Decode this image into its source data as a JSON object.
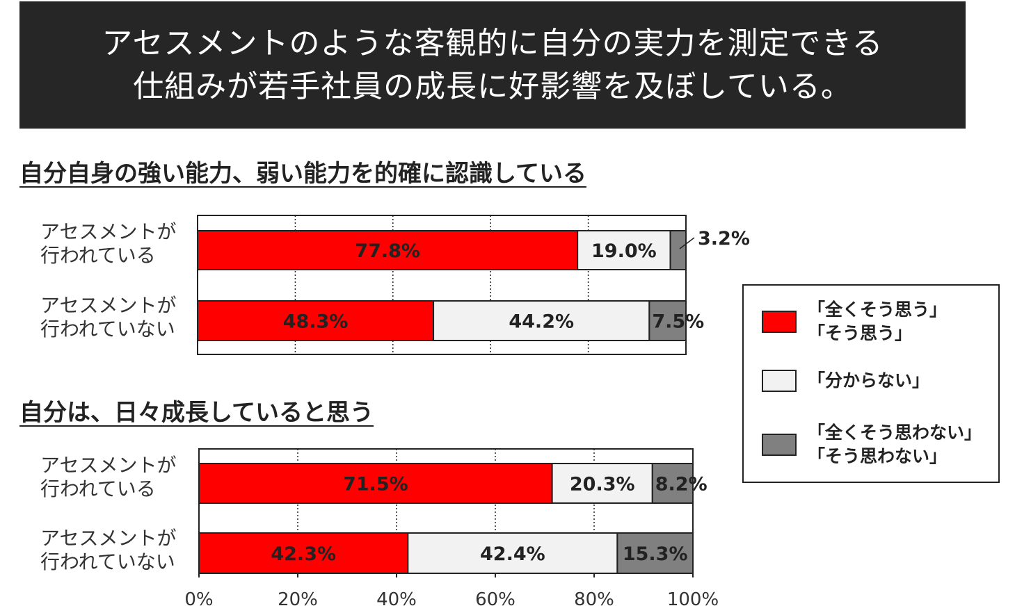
{
  "banner": {
    "line1": "アセスメントのような客観的に自分の実力を測定できる",
    "line2": "仕組みが若手社員の成長に好影響を及ぼしている。"
  },
  "colors": {
    "agree": "#ff0000",
    "unknown": "#f2f2f2",
    "disagree": "#808080"
  },
  "chart_data": [
    {
      "type": "bar",
      "orientation": "horizontal",
      "stacked": true,
      "title": "自分自身の強い能力、弱い能力を的確に認識している",
      "categories": [
        "アセスメントが\n行われている",
        "アセスメントが\n行われていない"
      ],
      "series": [
        {
          "name": "「全くそう思う」「そう思う」",
          "values": [
            77.8,
            48.3
          ]
        },
        {
          "name": "「分からない」",
          "values": [
            19.0,
            44.2
          ]
        },
        {
          "name": "「全くそう思わない」「そう思わない」",
          "values": [
            3.2,
            7.5
          ]
        }
      ],
      "data_labels": [
        [
          "77.8%",
          "19.0%",
          "3.2%"
        ],
        [
          "48.3%",
          "44.2%",
          "7.5%"
        ]
      ],
      "xlim": [
        0,
        100
      ],
      "grid": true
    },
    {
      "type": "bar",
      "orientation": "horizontal",
      "stacked": true,
      "title": "自分は、日々成長していると思う",
      "categories": [
        "アセスメントが\n行われている",
        "アセスメントが\n行われていない"
      ],
      "series": [
        {
          "name": "「全くそう思う」「そう思う」",
          "values": [
            71.5,
            42.3
          ]
        },
        {
          "name": "「分からない」",
          "values": [
            20.3,
            42.4
          ]
        },
        {
          "name": "「全くそう思わない」「そう思わない」",
          "values": [
            8.2,
            15.3
          ]
        }
      ],
      "data_labels": [
        [
          "71.5%",
          "20.3%",
          "8.2%"
        ],
        [
          "42.3%",
          "42.4%",
          "15.3%"
        ]
      ],
      "xlim": [
        0,
        100
      ],
      "xticks": [
        "0%",
        "20%",
        "40%",
        "60%",
        "80%",
        "100%"
      ],
      "grid": true
    }
  ],
  "row_labels": {
    "assessed": [
      "アセスメントが",
      "行われている"
    ],
    "not_assessed": [
      "アセスメントが",
      "行われていない"
    ]
  },
  "legend": {
    "agree": [
      "「全くそう思う」",
      "「そう思う」"
    ],
    "unknown": [
      "「分からない」"
    ],
    "disagree": [
      "「全くそう思わない」",
      "「そう思わない」"
    ]
  }
}
